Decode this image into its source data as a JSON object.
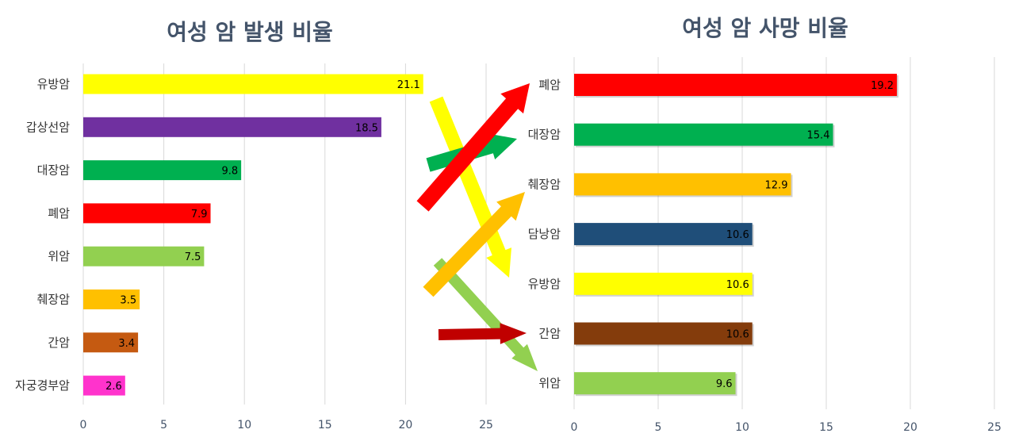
{
  "chart_data": [
    {
      "type": "bar",
      "orientation": "horizontal",
      "title": "여성 암 발생 비율",
      "categories": [
        "유방암",
        "갑상선암",
        "대장암",
        "폐암",
        "위암",
        "췌장암",
        "간암",
        "자궁경부암"
      ],
      "values": [
        21.1,
        18.5,
        9.8,
        7.9,
        7.5,
        3.5,
        3.4,
        2.6
      ],
      "value_labels": [
        "21.1",
        "18.5",
        "9.8",
        "7.9",
        "7.5",
        "3.5",
        "3.4",
        "2.6"
      ],
      "colors": [
        "#ffff00",
        "#7030a0",
        "#00b050",
        "#ff0000",
        "#92d050",
        "#ffc000",
        "#c55a11",
        "#ff33cc"
      ],
      "label_colors": [
        "#000000",
        "#7f6a9e",
        "#000000",
        "#c00000",
        "#000000",
        "#000000",
        "#5a3a1a",
        "#000000"
      ],
      "xlim": [
        0,
        25
      ],
      "xticks": [
        "0",
        "5",
        "10",
        "15",
        "20",
        "25"
      ],
      "grid": true
    },
    {
      "type": "bar",
      "orientation": "horizontal",
      "title": "여성 암 사망 비율",
      "categories": [
        "폐암",
        "대장암",
        "췌장암",
        "담낭암",
        "유방암",
        "간암",
        "위암"
      ],
      "values": [
        19.2,
        15.4,
        12.9,
        10.6,
        10.6,
        10.6,
        9.6
      ],
      "value_labels": [
        "19.2",
        "15.4",
        "12.9",
        "10.6",
        "10.6",
        "10.6",
        "9.6"
      ],
      "colors": [
        "#ff0000",
        "#00b050",
        "#ffc000",
        "#1f4e79",
        "#ffff00",
        "#843c0c",
        "#92d050"
      ],
      "label_colors": [
        "#c00000",
        "#000000",
        "#000000",
        "#2e4b6b",
        "#000000",
        "#5a3a1a",
        "#000000"
      ],
      "xlim": [
        0,
        25
      ],
      "xticks": [
        "0",
        "5",
        "10",
        "15",
        "20",
        "25"
      ],
      "grid": true
    }
  ],
  "connectors": [
    {
      "from": "유방암",
      "to": "유방암",
      "color": "#ffff00"
    },
    {
      "from": "대장암",
      "to": "대장암",
      "color": "#00b050"
    },
    {
      "from": "폐암",
      "to": "폐암",
      "color": "#ff0000"
    },
    {
      "from": "위암",
      "to": "위암",
      "color": "#92d050"
    },
    {
      "from": "췌장암",
      "to": "췌장암",
      "color": "#ffc000"
    },
    {
      "from": "간암",
      "to": "간암",
      "color": "#c00000"
    }
  ]
}
